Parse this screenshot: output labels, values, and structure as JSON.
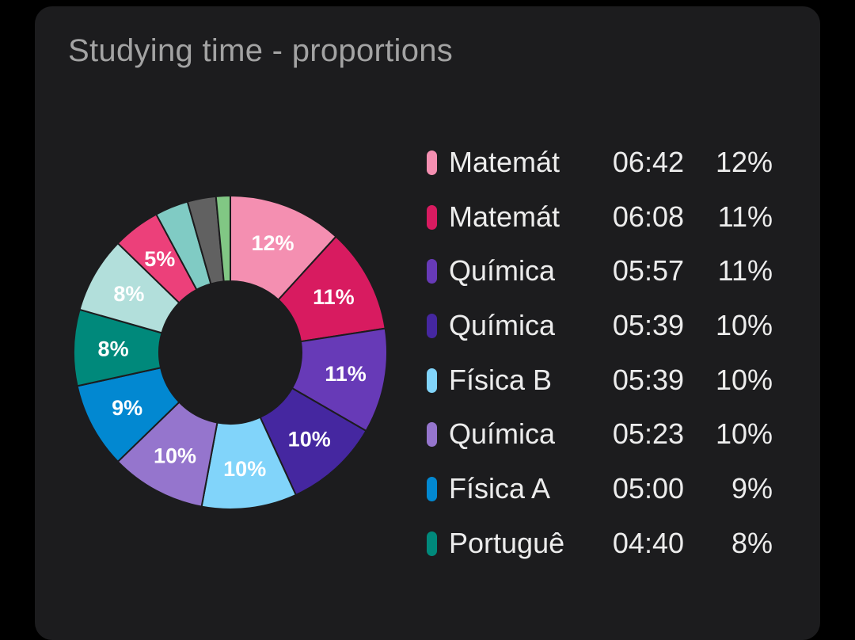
{
  "card": {
    "title": "Studying time - proportions"
  },
  "chart_data": {
    "type": "pie",
    "donut": true,
    "title": "Studying time - proportions",
    "legend_position": "right",
    "slices": [
      {
        "name": "Matemát",
        "time": "06:42",
        "percent": 12,
        "label": "12%",
        "color": "#f48fb1"
      },
      {
        "name": "Matemát",
        "time": "06:08",
        "percent": 11,
        "label": "11%",
        "color": "#d81b60"
      },
      {
        "name": "Química",
        "time": "05:57",
        "percent": 11,
        "label": "11%",
        "color": "#673ab7"
      },
      {
        "name": "Química",
        "time": "05:39",
        "percent": 10,
        "label": "10%",
        "color": "#4527a0"
      },
      {
        "name": "Física B",
        "time": "05:39",
        "percent": 10,
        "label": "10%",
        "color": "#81d4fa"
      },
      {
        "name": "Química",
        "time": "05:23",
        "percent": 10,
        "label": "10%",
        "color": "#9575cd"
      },
      {
        "name": "Física A",
        "time": "05:00",
        "percent": 9,
        "label": "9%",
        "color": "#0288d1"
      },
      {
        "name": "Portuguê",
        "time": "04:40",
        "percent": 8,
        "label": "8%",
        "color": "#00897b"
      },
      {
        "percent": 8,
        "label": "8%",
        "color": "#b2dfdb"
      },
      {
        "percent": 5,
        "label": "5%",
        "color": "#ec407a"
      },
      {
        "percent": 3.5,
        "label": "",
        "color": "#80cbc4"
      },
      {
        "percent": 3,
        "label": "",
        "color": "#616161"
      },
      {
        "percent": 1.5,
        "label": "",
        "color": "#81c784"
      }
    ]
  }
}
